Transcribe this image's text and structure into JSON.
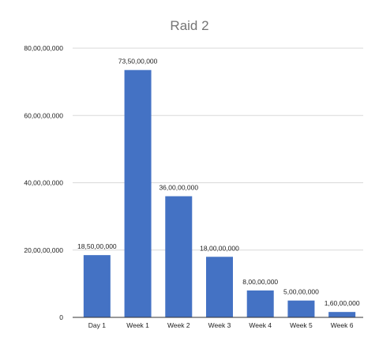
{
  "chart_data": {
    "type": "bar",
    "title": "Raid 2",
    "xlabel": "",
    "ylabel": "",
    "categories": [
      "Day 1",
      "Week 1",
      "Week 2",
      "Week 3",
      "Week 4",
      "Week 5",
      "Week 6"
    ],
    "values": [
      185000000,
      735000000,
      360000000,
      180000000,
      80000000,
      50000000,
      16000000
    ],
    "data_labels": [
      "18,50,00,000",
      "73,50,00,000",
      "36,00,00,000",
      "18,00,00,000",
      "8,00,00,000",
      "5,00,00,000",
      "1,60,00,000"
    ],
    "ylim": [
      0,
      800000000
    ],
    "yticks": [
      0,
      200000000,
      400000000,
      600000000,
      800000000
    ],
    "ytick_labels": [
      "0",
      "20,00,00,000",
      "40,00,00,000",
      "60,00,00,000",
      "80,00,00,000"
    ],
    "grid": true,
    "legend": "none",
    "bar_color": "#4472c4"
  }
}
